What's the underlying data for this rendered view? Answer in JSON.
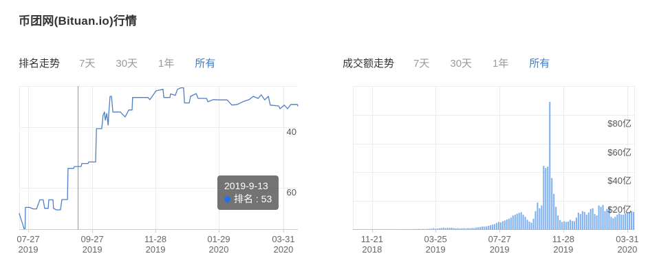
{
  "page": {
    "title": "币团网(Bituan.io)行情"
  },
  "colors": {
    "accent_blue": "#3e7cc9",
    "line_blue": "#4d7ec7",
    "bar_blue": "#7fb0f0",
    "grid": "#ececec",
    "axis": "#cccccc",
    "tick_text": "#666666",
    "crosshair": "#999999",
    "tooltip_bg": "rgba(80,80,80,0.80)",
    "marker_dot": "#1f6ff2",
    "inactive_filter": "#9a9a9a"
  },
  "rank_section": {
    "label": "排名走势",
    "filters": [
      "7天",
      "30天",
      "1年",
      "所有"
    ],
    "active_filter": "所有"
  },
  "volume_section": {
    "label": "成交额走势",
    "filters": [
      "7天",
      "30天",
      "1年",
      "所有"
    ],
    "active_filter": "所有"
  },
  "tooltip": {
    "date": "2019-9-13",
    "label": "排名 : 53"
  },
  "chart_data": [
    {
      "type": "line",
      "title": "排名走势",
      "series": [
        {
          "name": "排名",
          "unit": "rank"
        }
      ],
      "y_inverted": true,
      "ylim": [
        26,
        74
      ],
      "y_ticks": [
        {
          "value": 40,
          "label": "40"
        },
        {
          "value": 60,
          "label": "60"
        }
      ],
      "x_ticks": [
        {
          "line1": "07-27",
          "line2": "2019",
          "x_frac": 0.032
        },
        {
          "line1": "09-27",
          "line2": "2019",
          "x_frac": 0.262
        },
        {
          "line1": "11-28",
          "line2": "2019",
          "x_frac": 0.489
        },
        {
          "line1": "01-29",
          "line2": "2020",
          "x_frac": 0.716
        },
        {
          "line1": "03-31",
          "line2": "2020",
          "x_frac": 0.948
        }
      ],
      "highlight": {
        "date": "2019-9-13",
        "rank": 53,
        "x_frac": 0.21
      },
      "points": [
        [
          0.0,
          68.5
        ],
        [
          0.005,
          70
        ],
        [
          0.012,
          72
        ],
        [
          0.017,
          73.5
        ],
        [
          0.021,
          73.5
        ],
        [
          0.022,
          66.5
        ],
        [
          0.037,
          66.5
        ],
        [
          0.05,
          67
        ],
        [
          0.062,
          67
        ],
        [
          0.074,
          64
        ],
        [
          0.086,
          64
        ],
        [
          0.091,
          66.8
        ],
        [
          0.104,
          66.8
        ],
        [
          0.106,
          64
        ],
        [
          0.121,
          64
        ],
        [
          0.123,
          66.8
        ],
        [
          0.133,
          67.3
        ],
        [
          0.148,
          67.3
        ],
        [
          0.153,
          63.9
        ],
        [
          0.173,
          63.9
        ],
        [
          0.175,
          53.6
        ],
        [
          0.195,
          53.6
        ],
        [
          0.198,
          53
        ],
        [
          0.222,
          53
        ],
        [
          0.225,
          52
        ],
        [
          0.247,
          52
        ],
        [
          0.249,
          51.5
        ],
        [
          0.274,
          51.5
        ],
        [
          0.277,
          40.5
        ],
        [
          0.296,
          40.5
        ],
        [
          0.301,
          36
        ],
        [
          0.306,
          35
        ],
        [
          0.309,
          37.7
        ],
        [
          0.314,
          35.5
        ],
        [
          0.319,
          39.3
        ],
        [
          0.321,
          36
        ],
        [
          0.326,
          29.8
        ],
        [
          0.331,
          29.8
        ],
        [
          0.336,
          35
        ],
        [
          0.363,
          35
        ],
        [
          0.38,
          36.6
        ],
        [
          0.393,
          34.3
        ],
        [
          0.405,
          34.3
        ],
        [
          0.407,
          30.2
        ],
        [
          0.462,
          30.2
        ],
        [
          0.469,
          30.9
        ],
        [
          0.491,
          28
        ],
        [
          0.516,
          27.5
        ],
        [
          0.519,
          30.2
        ],
        [
          0.541,
          30.2
        ],
        [
          0.543,
          29
        ],
        [
          0.56,
          29.5
        ],
        [
          0.568,
          27.5
        ],
        [
          0.58,
          27
        ],
        [
          0.59,
          27
        ],
        [
          0.593,
          32
        ],
        [
          0.61,
          32
        ],
        [
          0.615,
          29.8
        ],
        [
          0.635,
          28.9
        ],
        [
          0.642,
          30.5
        ],
        [
          0.672,
          30.5
        ],
        [
          0.677,
          31.6
        ],
        [
          0.696,
          30.9
        ],
        [
          0.721,
          31
        ],
        [
          0.746,
          31
        ],
        [
          0.763,
          32.7
        ],
        [
          0.783,
          32.5
        ],
        [
          0.802,
          31.6
        ],
        [
          0.825,
          30.9
        ],
        [
          0.84,
          29.8
        ],
        [
          0.857,
          30.5
        ],
        [
          0.869,
          29.3
        ],
        [
          0.881,
          31
        ],
        [
          0.894,
          29.8
        ],
        [
          0.901,
          32.7
        ],
        [
          0.931,
          33
        ],
        [
          0.936,
          33.9
        ],
        [
          0.951,
          32.7
        ],
        [
          0.963,
          33.9
        ],
        [
          0.975,
          32.5
        ],
        [
          0.998,
          32.5
        ],
        [
          1.0,
          33
        ]
      ]
    },
    {
      "type": "bar",
      "title": "成交额走势",
      "series": [
        {
          "name": "成交额",
          "unit": "亿 (USD)"
        }
      ],
      "ylim": [
        0,
        100
      ],
      "y_ticks": [
        {
          "value": 80,
          "label": "$80亿"
        },
        {
          "value": 60,
          "label": "$60亿"
        },
        {
          "value": 40,
          "label": "$40亿"
        },
        {
          "value": 20,
          "label": "$20亿"
        }
      ],
      "x_ticks": [
        {
          "line1": "11-21",
          "line2": "2018",
          "x_frac": 0.068
        },
        {
          "line1": "03-25",
          "line2": "2019",
          "x_frac": 0.293
        },
        {
          "line1": "07-27",
          "line2": "2019",
          "x_frac": 0.52
        },
        {
          "line1": "11-28",
          "line2": "2019",
          "x_frac": 0.746
        },
        {
          "line1": "03-31",
          "line2": "2020",
          "x_frac": 0.973
        }
      ],
      "values": [
        0.1,
        0.1,
        0.1,
        0.1,
        0.1,
        0.15,
        0.1,
        0.1,
        0.15,
        0.1,
        0.1,
        0.15,
        0.1,
        0.2,
        0.15,
        0.2,
        0.2,
        0.25,
        0.2,
        0.3,
        0.25,
        0.3,
        0.3,
        0.35,
        0.3,
        0.4,
        0.35,
        0.4,
        0.4,
        0.5,
        0.45,
        0.5,
        0.55,
        0.5,
        0.6,
        0.55,
        0.6,
        0.7,
        0.8,
        1.0,
        0.8,
        0.9,
        1.1,
        1.3,
        1.5,
        1.2,
        1.4,
        1.3,
        1.5,
        1.2,
        1.0,
        1.1,
        0.9,
        1.0,
        1.1,
        1.0,
        1.2,
        1.1,
        1.3,
        1.2,
        1.6,
        1.8,
        2.0,
        2.3,
        2.1,
        2.4,
        2.8,
        3.2,
        3.6,
        4.0,
        4.8,
        5.5,
        5.2,
        6.0,
        6.5,
        7.2,
        7.7,
        8.5,
        10,
        10.5,
        11.2,
        11.8,
        12.3,
        10.5,
        9.0,
        7.0,
        5.7,
        5.0,
        7.7,
        13,
        19,
        15,
        17,
        44.5,
        43,
        44,
        89,
        36,
        25,
        16,
        10,
        6.8,
        5.5,
        6.0,
        5.5,
        5.8,
        7.0,
        6.2,
        6.0,
        8.5,
        12,
        11,
        13,
        12.5,
        10.5,
        12,
        14.5,
        15,
        11,
        10,
        17,
        16,
        17.3,
        13,
        14.5,
        16,
        9,
        8,
        9,
        10.5,
        11.5,
        10.5,
        10.5,
        11.5,
        12,
        12.5,
        13,
        12.5
      ]
    }
  ]
}
